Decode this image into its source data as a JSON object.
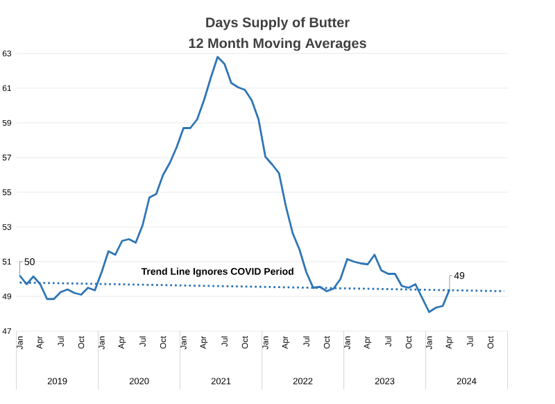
{
  "chart_data": {
    "type": "line",
    "title": "Days Supply of Butter",
    "subtitle": "12 Month Moving Averages",
    "categories": [
      "Jan",
      null,
      null,
      "Apr",
      null,
      null,
      "Jul",
      null,
      null,
      "Oct",
      null,
      null,
      "Jan",
      null,
      null,
      "Apr",
      null,
      null,
      "Jul",
      null,
      null,
      "Oct",
      null,
      null,
      "Jan",
      null,
      null,
      "Apr",
      null,
      null,
      "Jul",
      null,
      null,
      "Oct",
      null,
      null,
      "Jan",
      null,
      null,
      "Apr",
      null,
      null,
      "Jul",
      null,
      null,
      "Oct",
      null,
      null,
      "Jan",
      null,
      null,
      "Apr",
      null,
      null,
      "Jul",
      null,
      null,
      "Oct",
      null,
      null,
      "Jan",
      null,
      null,
      "Apr",
      null,
      null,
      "Jul",
      null,
      null,
      "Oct",
      null,
      null
    ],
    "series": [
      {
        "color": "#2e75b6",
        "line_style": "solid",
        "values": [
          50.2,
          49.7,
          50.15,
          49.7,
          48.85,
          48.85,
          49.25,
          49.4,
          49.2,
          49.1,
          49.5,
          49.35,
          50.4,
          51.6,
          51.4,
          52.2,
          52.3,
          52.1,
          53.1,
          54.7,
          54.9,
          56.0,
          56.7,
          57.6,
          58.7,
          58.7,
          59.2,
          60.3,
          61.6,
          62.8,
          62.4,
          61.3,
          61.05,
          60.9,
          60.3,
          59.2,
          57.05,
          56.6,
          56.1,
          54.2,
          52.65,
          51.7,
          50.4,
          49.5,
          49.55,
          49.3,
          49.45,
          50.0,
          51.15,
          51.0,
          50.9,
          50.85,
          51.4,
          50.5,
          50.3,
          50.3,
          49.6,
          49.5,
          49.7,
          48.9,
          48.1,
          48.35,
          48.45,
          49.4,
          null,
          null,
          null,
          null,
          null,
          null,
          null,
          null
        ],
        "value_labels": [
          "50",
          null,
          null,
          null,
          null,
          null,
          null,
          null,
          null,
          null,
          null,
          null,
          null,
          null,
          null,
          null,
          null,
          null,
          null,
          null,
          null,
          null,
          null,
          null,
          null,
          null,
          null,
          null,
          null,
          null,
          null,
          null,
          null,
          null,
          null,
          null,
          null,
          null,
          null,
          null,
          null,
          null,
          null,
          null,
          null,
          null,
          null,
          null,
          null,
          null,
          null,
          null,
          null,
          null,
          null,
          null,
          null,
          null,
          null,
          null,
          null,
          null,
          null,
          "49",
          null,
          null,
          null,
          null,
          null,
          null,
          null,
          null
        ]
      },
      {
        "type": "line",
        "color": "#2e75b6",
        "line_style": "dotted",
        "values": [
          49.8,
          null,
          null,
          null,
          null,
          null,
          null,
          null,
          null,
          null,
          null,
          null,
          null,
          null,
          null,
          null,
          null,
          null,
          null,
          null,
          null,
          null,
          null,
          null,
          null,
          null,
          null,
          null,
          null,
          null,
          null,
          null,
          null,
          null,
          null,
          null,
          null,
          null,
          null,
          null,
          null,
          null,
          null,
          null,
          null,
          null,
          null,
          null,
          null,
          null,
          null,
          null,
          null,
          null,
          null,
          null,
          null,
          null,
          null,
          null,
          null,
          null,
          null,
          null,
          null,
          null,
          null,
          null,
          null,
          null,
          null,
          49.3
        ]
      }
    ],
    "ylim": [
      47,
      63
    ],
    "yticks": [
      47,
      49,
      51,
      53,
      55,
      57,
      59,
      61,
      63
    ],
    "grid": "y",
    "annotations": [
      "Trend Line Ignores COVID Period",
      "2019",
      "2020",
      "2021",
      "2022",
      "2023",
      "2024"
    ]
  }
}
